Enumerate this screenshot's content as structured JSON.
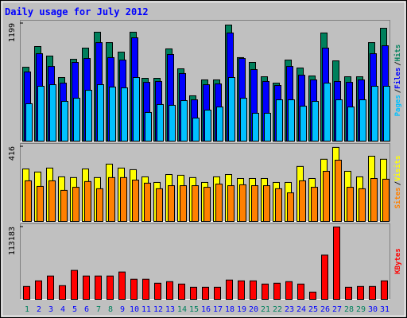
{
  "title": "Daily usage for July 2012",
  "chart_data": {
    "type": "bar",
    "categories": [
      "1",
      "2",
      "3",
      "4",
      "5",
      "6",
      "7",
      "8",
      "9",
      "10",
      "11",
      "12",
      "13",
      "14",
      "15",
      "16",
      "17",
      "18",
      "19",
      "20",
      "21",
      "22",
      "23",
      "24",
      "25",
      "26",
      "27",
      "28",
      "29",
      "30",
      "31"
    ],
    "category_colors": [
      "#00805c",
      "#0000ff",
      "#0000ff",
      "#0000ff",
      "#0000ff",
      "#0000ff",
      "#00805c",
      "#00805c",
      "#0000ff",
      "#0000ff",
      "#0000ff",
      "#0000ff",
      "#0000ff",
      "#00805c",
      "#00805c",
      "#0000ff",
      "#0000ff",
      "#0000ff",
      "#0000ff",
      "#0000ff",
      "#00805c",
      "#00805c",
      "#0000ff",
      "#0000ff",
      "#0000ff",
      "#0000ff",
      "#0000ff",
      "#00805c",
      "#00805c",
      "#0000ff",
      "#0000ff"
    ],
    "separator": "/",
    "panels": [
      {
        "ylim": [
          0,
          1199
        ],
        "yticks": [
          1199
        ],
        "series": [
          {
            "name": "Hits",
            "color": "#00805c",
            "values": [
              753,
              964,
              867,
              648,
              834,
              948,
              1110,
              1004,
              907,
              1110,
              640,
              640,
              940,
              737,
              462,
              624,
              624,
              1183,
              851,
              802,
              656,
              591,
              826,
              745,
              664,
              1102,
              818,
              656,
              656,
              1004,
              1150
            ]
          },
          {
            "name": "Files",
            "color": "#0000ff",
            "values": [
              705,
              891,
              761,
              591,
              802,
              842,
              1004,
              851,
              826,
              1053,
              599,
              608,
              883,
              689,
              421,
              575,
              583,
              1102,
              842,
              729,
              608,
              567,
              761,
              672,
              624,
              948,
              608,
              599,
              624,
              891,
              972
            ]
          },
          {
            "name": "Pages",
            "color": "#00c0ff",
            "values": [
              381,
              559,
              575,
              405,
              437,
              518,
              575,
              551,
              543,
              648,
              292,
              373,
              365,
              413,
              235,
              316,
              348,
              648,
              437,
              284,
              284,
              421,
              421,
              356,
              405,
              591,
              421,
              348,
              421,
              559,
              559
            ]
          }
        ]
      },
      {
        "ylim": [
          0,
          416
        ],
        "yticks": [
          416
        ],
        "series": [
          {
            "name": "Visits",
            "color": "#ffff00",
            "values": [
              292,
              275,
              297,
              248,
              244,
              292,
              244,
              319,
              297,
              288,
              248,
              217,
              261,
              257,
              244,
              217,
              248,
              261,
              239,
              239,
              239,
              217,
              217,
              306,
              239,
              346,
              412,
              279,
              248,
              363,
              346
            ]
          },
          {
            "name": "Sites",
            "color": "#ff8000",
            "values": [
              226,
              195,
              226,
              173,
              190,
              222,
              182,
              244,
              244,
              230,
              213,
              182,
              199,
              199,
              199,
              190,
              208,
              199,
              204,
              199,
              199,
              182,
              159,
              226,
              190,
              279,
              341,
              190,
              182,
              239,
              235
            ]
          }
        ]
      },
      {
        "ylim": [
          0,
          113183
        ],
        "yticks": [
          113183
        ],
        "series": [
          {
            "name": "KBytes",
            "color": "#ff0000",
            "values": [
              20122,
              28925,
              36470,
              21379,
              45274,
              36470,
              36470,
              36470,
              42758,
              31440,
              31440,
              25152,
              27667,
              23894,
              18864,
              18864,
              18864,
              30182,
              28925,
              28925,
              23894,
              25152,
              27667,
              23894,
              11318,
              69168,
              113183,
              18864,
              20122,
              20122,
              28925
            ]
          }
        ]
      }
    ]
  }
}
